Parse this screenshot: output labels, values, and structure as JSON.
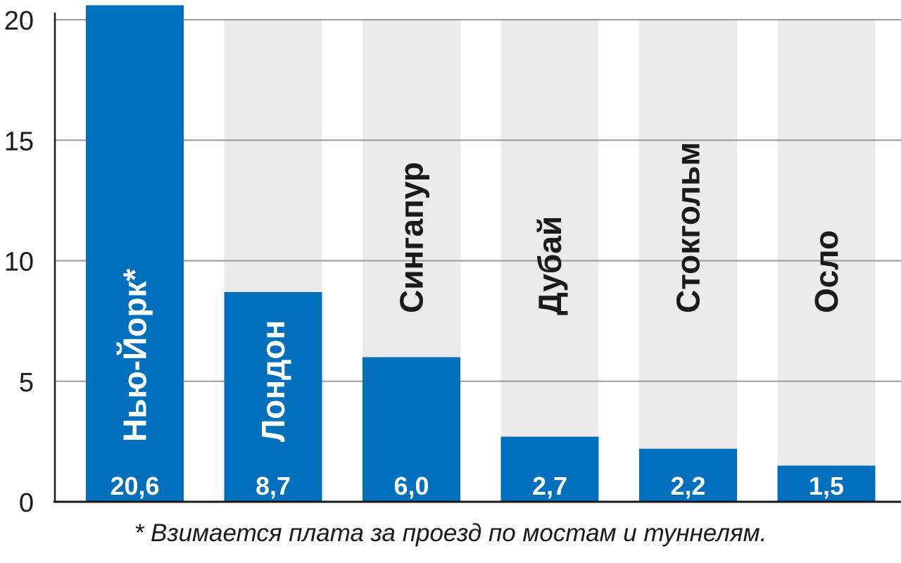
{
  "chart_data": {
    "type": "bar",
    "categories": [
      "Нью-Йорк*",
      "Лондон",
      "Сингапур",
      "Дубай",
      "Стокгольм",
      "Осло"
    ],
    "values": [
      20.6,
      8.7,
      6.0,
      2.7,
      2.2,
      1.5
    ],
    "value_labels": [
      "20,6",
      "8,7",
      "6,0",
      "2,7",
      "2,2",
      "1,5"
    ],
    "ylim": [
      0,
      20
    ],
    "yticks": [
      0,
      5,
      10,
      15,
      20
    ],
    "grid": true,
    "colors": {
      "bar": "#0070bd",
      "background_column": "#ebebeb",
      "label_inside_bar": "#ffffff",
      "label_on_background": "#1a1a1a",
      "grid": "#9a9a9a"
    }
  },
  "footnote": "* Взимается плата за проезд по мостам и туннелям."
}
